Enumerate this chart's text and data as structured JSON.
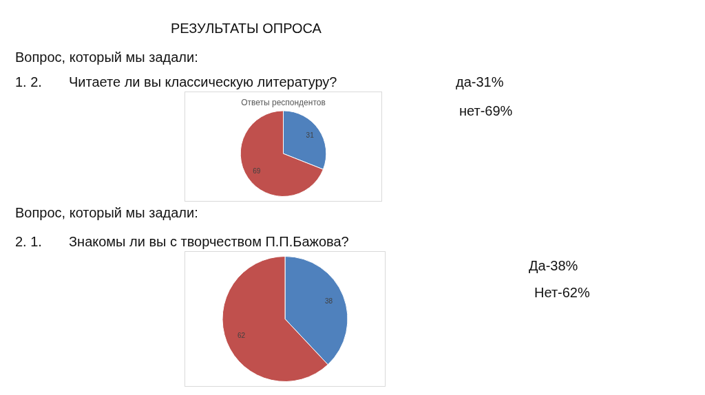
{
  "chart_data": [
    {
      "type": "pie",
      "title": "Ответы респондентов",
      "categories": [
        null,
        null
      ],
      "values": [
        31,
        69
      ],
      "colors": [
        "#4f81bd",
        "#c0504d"
      ],
      "data_labels": true,
      "legend": false,
      "annotations": [
        "РЕЗУЛЬТАТЫ ОПРОСА",
        "Вопрос, который мы задали:",
        "1. 2.",
        "Читаете ли вы классическую литературу?",
        "да-31%",
        "нет-69%"
      ]
    },
    {
      "type": "pie",
      "categories": [
        null,
        null
      ],
      "values": [
        38,
        62
      ],
      "colors": [
        "#4f81bd",
        "#c0504d"
      ],
      "data_labels": true,
      "legend": false,
      "annotations": [
        "Вопрос, который мы задали:",
        "2. 1.",
        "Знакомы ли вы с творчеством П.П.Бажова?",
        "Да-38%",
        "Нет-62%"
      ]
    }
  ]
}
